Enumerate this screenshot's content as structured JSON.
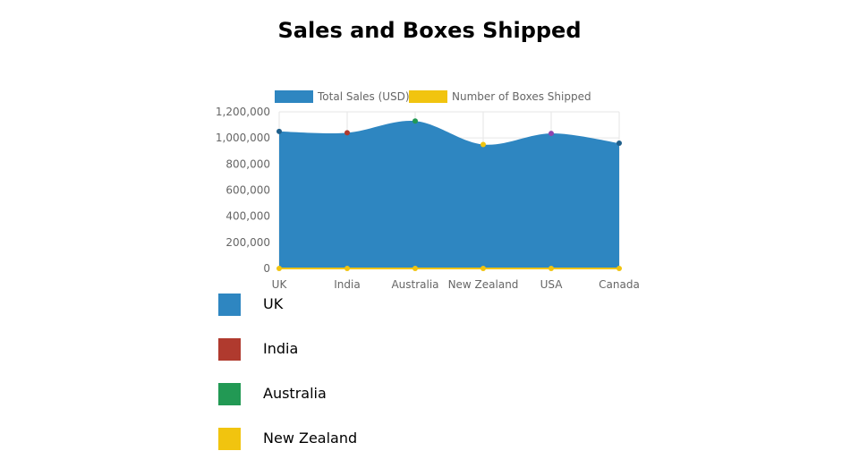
{
  "title": "Sales and Boxes Shipped",
  "chart_data": {
    "type": "area",
    "categories": [
      "UK",
      "India",
      "Australia",
      "New Zealand",
      "USA",
      "Canada"
    ],
    "series": [
      {
        "name": "Total Sales (USD)",
        "values": [
          1050000,
          1040000,
          1130000,
          950000,
          1035000,
          960000
        ],
        "color": "#2e86c1"
      },
      {
        "name": "Number of Boxes Shipped",
        "values": [
          0,
          0,
          0,
          0,
          0,
          0
        ],
        "color": "#f1c40f"
      }
    ],
    "point_colors": [
      "#1f5f8b",
      "#b03a2e",
      "#229954",
      "#f1c40f",
      "#8e44ad",
      "#1f5f8b"
    ],
    "ylim": [
      0,
      1200000
    ],
    "yticks": [
      0,
      200000,
      400000,
      600000,
      800000,
      1000000,
      1200000
    ],
    "ytick_labels": [
      "0",
      "200,000",
      "400,000",
      "600,000",
      "800,000",
      "1,000,000",
      "1,200,000"
    ],
    "legend_position": "top",
    "grid": true
  },
  "country_legend": [
    {
      "label": "UK",
      "color": "#2e86c1"
    },
    {
      "label": "India",
      "color": "#b03a2e"
    },
    {
      "label": "Australia",
      "color": "#229954"
    },
    {
      "label": "New Zealand",
      "color": "#f1c40f"
    }
  ]
}
